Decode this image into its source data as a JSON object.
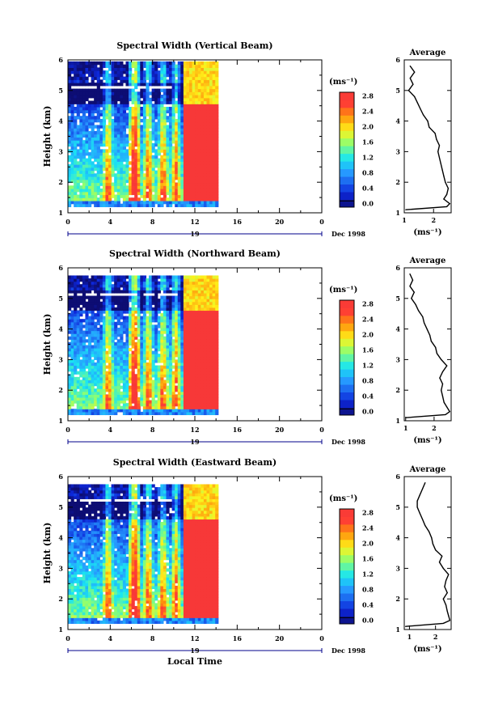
{
  "chart_data": [
    {
      "type": "heatmap",
      "title": "Spectral Width (Vertical Beam)",
      "ylabel": "Height (km)",
      "xlabel": "",
      "xticks": [
        "0",
        "4",
        "8",
        "12",
        "16",
        "20",
        "0"
      ],
      "yticks": [
        "1",
        "2",
        "3",
        "4",
        "5",
        "6"
      ],
      "xlim": [
        0,
        24
      ],
      "ylim": [
        1,
        6
      ],
      "day_label": "19",
      "date_label": "Dec 1998",
      "data_extent_hours": [
        0,
        14.2
      ],
      "colorbar": {
        "unit": "(ms⁻¹)",
        "ticks": [
          "0.0",
          "0.4",
          "0.8",
          "1.2",
          "1.6",
          "2.0",
          "2.4",
          "2.8"
        ],
        "range": [
          0,
          3.0
        ]
      },
      "average_profile": {
        "title": "Average",
        "xlabel": "(ms⁻¹)",
        "xticks": [
          "1",
          "2"
        ],
        "xlim": [
          1,
          2.6
        ],
        "heights": [
          1.1,
          1.2,
          1.3,
          1.45,
          1.6,
          1.8,
          2.0,
          2.2,
          2.4,
          2.6,
          2.8,
          3.0,
          3.2,
          3.4,
          3.6,
          3.8,
          4.0,
          4.2,
          4.4,
          4.6,
          4.8,
          5.0,
          5.2,
          5.4,
          5.6,
          5.8
        ],
        "values": [
          1.05,
          2.45,
          2.55,
          2.35,
          2.45,
          2.5,
          2.4,
          2.35,
          2.3,
          2.25,
          2.2,
          2.15,
          2.2,
          2.1,
          2.05,
          1.85,
          1.8,
          1.65,
          1.55,
          1.45,
          1.35,
          1.15,
          1.3,
          1.2,
          1.35,
          1.2
        ]
      }
    },
    {
      "type": "heatmap",
      "title": "Spectral Width (Northward Beam)",
      "ylabel": "Height (km)",
      "xlabel": "",
      "xticks": [
        "0",
        "4",
        "8",
        "12",
        "16",
        "20",
        "0"
      ],
      "yticks": [
        "1",
        "2",
        "3",
        "4",
        "5",
        "6"
      ],
      "xlim": [
        0,
        24
      ],
      "ylim": [
        1,
        6
      ],
      "day_label": "19",
      "date_label": "Dec 1998",
      "data_extent_hours": [
        0,
        14.2
      ],
      "colorbar": {
        "unit": "(ms⁻¹)",
        "ticks": [
          "0.0",
          "0.4",
          "0.8",
          "1.2",
          "1.6",
          "2.0",
          "2.4",
          "2.8"
        ],
        "range": [
          0,
          3.0
        ]
      },
      "average_profile": {
        "title": "Average",
        "xlabel": "(ms⁻¹)",
        "xticks": [
          "1",
          "2"
        ],
        "xlim": [
          0.95,
          2.6
        ],
        "heights": [
          1.1,
          1.2,
          1.3,
          1.45,
          1.6,
          1.8,
          2.0,
          2.2,
          2.4,
          2.6,
          2.8,
          3.0,
          3.2,
          3.4,
          3.6,
          3.8,
          4.0,
          4.2,
          4.4,
          4.6,
          4.8,
          5.0,
          5.2,
          5.4,
          5.6,
          5.8
        ],
        "values": [
          1.0,
          2.4,
          2.55,
          2.45,
          2.35,
          2.3,
          2.25,
          2.3,
          2.2,
          2.3,
          2.45,
          2.25,
          2.1,
          2.05,
          1.9,
          1.85,
          1.75,
          1.65,
          1.6,
          1.45,
          1.35,
          1.2,
          1.3,
          1.15,
          1.25,
          1.15
        ]
      }
    },
    {
      "type": "heatmap",
      "title": "Spectral Width (Eastward Beam)",
      "ylabel": "Height (km)",
      "xlabel": "Local Time",
      "xticks": [
        "0",
        "4",
        "8",
        "12",
        "16",
        "20",
        "0"
      ],
      "yticks": [
        "1",
        "2",
        "3",
        "4",
        "5",
        "6"
      ],
      "xlim": [
        0,
        24
      ],
      "ylim": [
        1,
        6
      ],
      "day_label": "19",
      "date_label": "Dec 1998",
      "data_extent_hours": [
        0,
        14.2
      ],
      "colorbar": {
        "unit": "(ms⁻¹)",
        "ticks": [
          "0.0",
          "0.4",
          "0.8",
          "1.2",
          "1.6",
          "2.0",
          "2.4",
          "2.8"
        ],
        "range": [
          0,
          3.0
        ]
      },
      "average_profile": {
        "title": "Average",
        "xlabel": "(ms⁻¹)",
        "xticks": [
          "1",
          "2"
        ],
        "xlim": [
          0.8,
          2.6
        ],
        "heights": [
          1.1,
          1.2,
          1.3,
          1.45,
          1.6,
          1.8,
          2.0,
          2.2,
          2.4,
          2.6,
          2.8,
          3.0,
          3.2,
          3.4,
          3.6,
          3.8,
          4.0,
          4.2,
          4.4,
          4.6,
          4.8,
          5.0,
          5.2,
          5.4,
          5.6,
          5.8
        ],
        "values": [
          0.85,
          2.3,
          2.55,
          2.5,
          2.45,
          2.4,
          2.3,
          2.45,
          2.35,
          2.4,
          2.5,
          2.3,
          2.15,
          2.25,
          2.0,
          1.9,
          1.85,
          1.75,
          1.6,
          1.5,
          1.4,
          1.3,
          1.3,
          1.4,
          1.5,
          1.6
        ]
      }
    }
  ]
}
